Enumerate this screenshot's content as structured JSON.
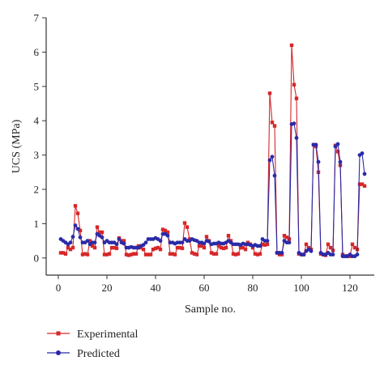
{
  "chart_data": {
    "type": "line",
    "xlabel": "Sample no.",
    "ylabel": "UCS (MPa)",
    "xlim": [
      -5,
      130
    ],
    "ylim": [
      -0.5,
      7
    ],
    "xticks": [
      0,
      20,
      40,
      60,
      80,
      100,
      120
    ],
    "yticks": [
      0,
      1,
      2,
      3,
      4,
      5,
      6,
      7
    ],
    "grid": false,
    "legend_position": "bottom-left",
    "series": [
      {
        "name": "Experimental",
        "color": "#d62728",
        "marker": "square",
        "x": [
          1,
          2,
          3,
          4,
          5,
          6,
          7,
          8,
          9,
          10,
          11,
          12,
          13,
          14,
          15,
          16,
          17,
          18,
          19,
          20,
          21,
          22,
          23,
          24,
          25,
          26,
          27,
          28,
          29,
          30,
          31,
          32,
          33,
          34,
          35,
          36,
          37,
          38,
          39,
          40,
          41,
          42,
          43,
          44,
          45,
          46,
          47,
          48,
          49,
          50,
          51,
          52,
          53,
          54,
          55,
          56,
          57,
          58,
          59,
          60,
          61,
          62,
          63,
          64,
          65,
          66,
          67,
          68,
          69,
          70,
          71,
          72,
          73,
          74,
          75,
          76,
          77,
          78,
          79,
          80,
          81,
          82,
          83,
          84,
          85,
          86,
          87,
          88,
          89,
          90,
          91,
          92,
          93,
          94,
          95,
          96,
          97,
          98,
          99,
          100,
          101,
          102,
          103,
          104,
          105,
          106,
          107,
          108,
          109,
          110,
          111,
          112,
          113,
          114,
          115,
          116,
          117,
          118,
          119,
          120,
          121,
          122,
          123,
          124,
          125,
          126
        ],
        "y": [
          0.15,
          0.15,
          0.12,
          0.3,
          0.25,
          0.3,
          1.52,
          1.3,
          0.8,
          0.1,
          0.12,
          0.1,
          0.5,
          0.35,
          0.3,
          0.9,
          0.75,
          0.75,
          0.1,
          0.1,
          0.12,
          0.3,
          0.3,
          0.28,
          0.58,
          0.5,
          0.5,
          0.1,
          0.08,
          0.1,
          0.12,
          0.12,
          0.35,
          0.3,
          0.25,
          0.1,
          0.1,
          0.1,
          0.25,
          0.28,
          0.3,
          0.25,
          0.83,
          0.8,
          0.75,
          0.12,
          0.12,
          0.1,
          0.3,
          0.3,
          0.28,
          1.02,
          0.9,
          0.55,
          0.15,
          0.12,
          0.1,
          0.35,
          0.35,
          0.3,
          0.62,
          0.5,
          0.15,
          0.12,
          0.12,
          0.35,
          0.3,
          0.28,
          0.3,
          0.65,
          0.5,
          0.12,
          0.1,
          0.12,
          0.3,
          0.3,
          0.25,
          0.45,
          0.4,
          0.3,
          0.12,
          0.1,
          0.12,
          0.4,
          0.38,
          0.4,
          4.8,
          3.95,
          3.85,
          0.15,
          0.1,
          0.1,
          0.65,
          0.6,
          0.55,
          6.2,
          5.05,
          4.65,
          0.12,
          0.1,
          0.1,
          0.4,
          0.3,
          0.25,
          3.3,
          3.25,
          2.5,
          0.12,
          0.1,
          0.08,
          0.4,
          0.3,
          0.22,
          3.28,
          3.1,
          2.7,
          0.1,
          0.05,
          0.06,
          0.05,
          0.4,
          0.3,
          0.25,
          2.15,
          2.15,
          2.1
        ]
      },
      {
        "name": "Predicted",
        "color": "#2a2aa8",
        "marker": "circle",
        "x": [
          1,
          2,
          3,
          4,
          5,
          6,
          7,
          8,
          9,
          10,
          11,
          12,
          13,
          14,
          15,
          16,
          17,
          18,
          19,
          20,
          21,
          22,
          23,
          24,
          25,
          26,
          27,
          28,
          29,
          30,
          31,
          32,
          33,
          34,
          35,
          36,
          37,
          38,
          39,
          40,
          41,
          42,
          43,
          44,
          45,
          46,
          47,
          48,
          49,
          50,
          51,
          52,
          53,
          54,
          55,
          56,
          57,
          58,
          59,
          60,
          61,
          62,
          63,
          64,
          65,
          66,
          67,
          68,
          69,
          70,
          71,
          72,
          73,
          74,
          75,
          76,
          77,
          78,
          79,
          80,
          81,
          82,
          83,
          84,
          85,
          86,
          87,
          88,
          89,
          90,
          91,
          92,
          93,
          94,
          95,
          96,
          97,
          98,
          99,
          100,
          101,
          102,
          103,
          104,
          105,
          106,
          107,
          108,
          109,
          110,
          111,
          112,
          113,
          114,
          115,
          116,
          117,
          118,
          119,
          120,
          121,
          122,
          123,
          124,
          125,
          126
        ],
        "y": [
          0.55,
          0.5,
          0.45,
          0.4,
          0.45,
          0.62,
          0.95,
          0.85,
          0.6,
          0.45,
          0.45,
          0.5,
          0.4,
          0.45,
          0.45,
          0.7,
          0.65,
          0.6,
          0.45,
          0.5,
          0.45,
          0.45,
          0.45,
          0.4,
          0.55,
          0.45,
          0.42,
          0.3,
          0.3,
          0.32,
          0.3,
          0.3,
          0.3,
          0.35,
          0.38,
          0.45,
          0.55,
          0.55,
          0.55,
          0.58,
          0.55,
          0.5,
          0.7,
          0.7,
          0.65,
          0.45,
          0.45,
          0.42,
          0.45,
          0.45,
          0.45,
          0.55,
          0.5,
          0.5,
          0.55,
          0.52,
          0.5,
          0.45,
          0.45,
          0.42,
          0.5,
          0.48,
          0.4,
          0.42,
          0.42,
          0.45,
          0.42,
          0.42,
          0.45,
          0.5,
          0.45,
          0.4,
          0.4,
          0.4,
          0.38,
          0.42,
          0.4,
          0.4,
          0.38,
          0.35,
          0.38,
          0.35,
          0.35,
          0.55,
          0.5,
          0.5,
          2.85,
          2.95,
          2.4,
          0.15,
          0.15,
          0.15,
          0.5,
          0.45,
          0.45,
          3.9,
          3.92,
          3.5,
          0.15,
          0.1,
          0.1,
          0.2,
          0.25,
          0.2,
          3.3,
          3.3,
          2.8,
          0.15,
          0.1,
          0.1,
          0.15,
          0.1,
          0.1,
          3.25,
          3.32,
          2.8,
          0.05,
          0.05,
          0.05,
          0.1,
          0.05,
          0.05,
          0.1,
          3.0,
          3.05,
          2.45
        ]
      }
    ]
  }
}
